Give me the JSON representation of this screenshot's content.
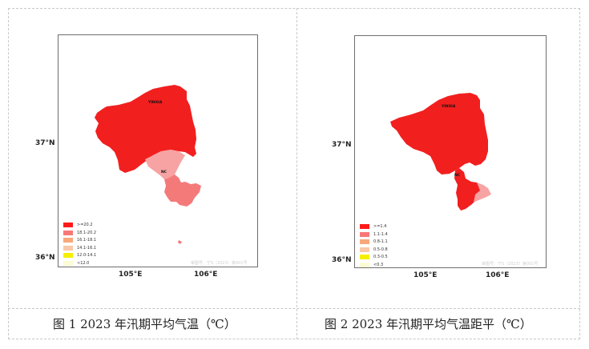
{
  "figures": [
    {
      "id": "fig1",
      "caption": "图 1  2023 年汛期平均气温（℃）",
      "lat_ticks": [
        "37°N",
        "36°N"
      ],
      "lon_ticks": [
        "105°E",
        "106°E"
      ],
      "places": [
        "YINXIA",
        "NC"
      ],
      "legend": [
        {
          "label": ">=20.2",
          "color": "#ff1a1a"
        },
        {
          "label": "18.1-20.2",
          "color": "#f87878"
        },
        {
          "label": "16.1-18.1",
          "color": "#f9a87a"
        },
        {
          "label": "14.1-16.1",
          "color": "#f9c8a8"
        },
        {
          "label": "12.0-14.1",
          "color": "#f5f000"
        },
        {
          "label": "<12.0",
          "color": "#fbfbd6"
        }
      ],
      "watermark": "审图号：宁S（2023）第001号"
    },
    {
      "id": "fig2",
      "caption": "图 2  2023 年汛期平均气温距平（℃）",
      "lat_ticks": [
        "37°N",
        "36°N"
      ],
      "lon_ticks": [
        "105°E",
        "106°E"
      ],
      "places": [
        "YINXIA",
        "NC"
      ],
      "legend": [
        {
          "label": ">=1.4",
          "color": "#ff1a1a"
        },
        {
          "label": "1.1-1.4",
          "color": "#f87878"
        },
        {
          "label": "0.8-1.1",
          "color": "#f9a87a"
        },
        {
          "label": "0.5-0.8",
          "color": "#f9c8a8"
        },
        {
          "label": "0.3-0.5",
          "color": "#f5f000"
        },
        {
          "label": "<0.3",
          "color": "#fbfbd6"
        }
      ],
      "watermark": "审图号：宁S（2023）第001号"
    }
  ]
}
